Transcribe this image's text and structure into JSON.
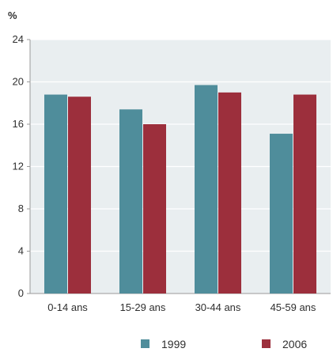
{
  "colors": {
    "series_1999": "#4f8d9b",
    "series_2006": "#9c2f3c",
    "plot_background": "#e9eef0",
    "gridline": "#ffffff",
    "axis": "#9a9a9a",
    "frame": "#d6dde0"
  },
  "chart_data": {
    "type": "bar",
    "title": "",
    "xlabel": "",
    "ylabel": "%",
    "categories": [
      "0-14 ans",
      "15-29 ans",
      "30-44 ans",
      "45-59 ans"
    ],
    "series": [
      {
        "name": "1999",
        "values": [
          18.8,
          17.4,
          19.7,
          15.1
        ]
      },
      {
        "name": "2006",
        "values": [
          18.6,
          16.0,
          19.0,
          18.8
        ]
      }
    ],
    "ylim": [
      0,
      24
    ],
    "yticks": [
      0,
      4,
      8,
      12,
      16,
      20,
      24
    ],
    "grid": true,
    "legend_position": "bottom"
  }
}
